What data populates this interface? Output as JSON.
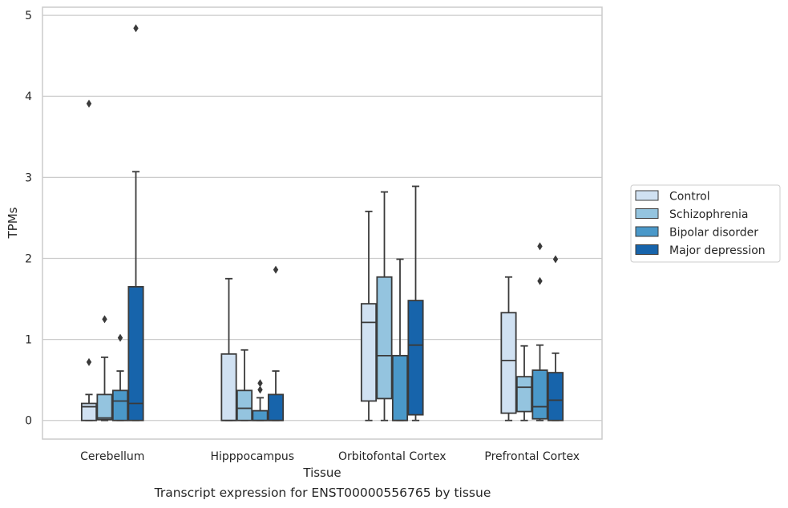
{
  "caption": "Transcript expression for ENST00000556765 by tissue",
  "chart_data": {
    "type": "box",
    "xlabel": "Tissue",
    "ylabel": "TPMs",
    "ylim": [
      -0.23,
      5.1
    ],
    "yticks": [
      0,
      1,
      2,
      3,
      4,
      5
    ],
    "grid": "horizontal",
    "legend_position": "right",
    "categories": [
      "Cerebellum",
      "Hipppocampus",
      "Orbitofontal Cortex",
      "Prefrontal Cortex"
    ],
    "series": [
      {
        "name": "Control",
        "color": "#d0e1f2",
        "boxes": [
          {
            "whislo": 0,
            "q1": 0,
            "med": 0.17,
            "q3": 0.21,
            "whishi": 0.32,
            "fliers": [
              0.72,
              3.91
            ]
          },
          {
            "whislo": 0,
            "q1": 0,
            "med": 0,
            "q3": 0.82,
            "whishi": 1.75,
            "fliers": []
          },
          {
            "whislo": 0,
            "q1": 0.24,
            "med": 1.21,
            "q3": 1.44,
            "whishi": 2.58,
            "fliers": []
          },
          {
            "whislo": 0,
            "q1": 0.09,
            "med": 0.74,
            "q3": 1.33,
            "whishi": 1.77,
            "fliers": []
          }
        ]
      },
      {
        "name": "Schizophrenia",
        "color": "#94c4df",
        "boxes": [
          {
            "whislo": 0,
            "q1": 0.01,
            "med": 0.03,
            "q3": 0.32,
            "whishi": 0.78,
            "fliers": [
              1.25
            ]
          },
          {
            "whislo": 0,
            "q1": 0,
            "med": 0.15,
            "q3": 0.37,
            "whishi": 0.87,
            "fliers": []
          },
          {
            "whislo": 0,
            "q1": 0.27,
            "med": 0.8,
            "q3": 1.77,
            "whishi": 2.82,
            "fliers": []
          },
          {
            "whislo": 0,
            "q1": 0.11,
            "med": 0.41,
            "q3": 0.54,
            "whishi": 0.92,
            "fliers": []
          }
        ]
      },
      {
        "name": "Bipolar disorder",
        "color": "#4a98c9",
        "boxes": [
          {
            "whislo": 0,
            "q1": 0,
            "med": 0.24,
            "q3": 0.37,
            "whishi": 0.61,
            "fliers": [
              1.02
            ]
          },
          {
            "whislo": 0,
            "q1": 0,
            "med": 0,
            "q3": 0.12,
            "whishi": 0.28,
            "fliers": [
              0.38,
              0.46
            ]
          },
          {
            "whislo": 0,
            "q1": 0,
            "med": 0,
            "q3": 0.8,
            "whishi": 1.99,
            "fliers": []
          },
          {
            "whislo": 0,
            "q1": 0.02,
            "med": 0.17,
            "q3": 0.62,
            "whishi": 0.93,
            "fliers": [
              1.72,
              2.15
            ]
          }
        ]
      },
      {
        "name": "Major depression",
        "color": "#1764ab",
        "boxes": [
          {
            "whislo": 0,
            "q1": 0,
            "med": 0.21,
            "q3": 1.65,
            "whishi": 3.07,
            "fliers": [
              4.84
            ]
          },
          {
            "whislo": 0,
            "q1": 0,
            "med": 0,
            "q3": 0.32,
            "whishi": 0.61,
            "fliers": [
              1.86
            ]
          },
          {
            "whislo": 0,
            "q1": 0.07,
            "med": 0.93,
            "q3": 1.48,
            "whishi": 2.89,
            "fliers": []
          },
          {
            "whislo": 0,
            "q1": 0,
            "med": 0.25,
            "q3": 0.59,
            "whishi": 0.83,
            "fliers": [
              1.99
            ]
          }
        ]
      }
    ]
  }
}
